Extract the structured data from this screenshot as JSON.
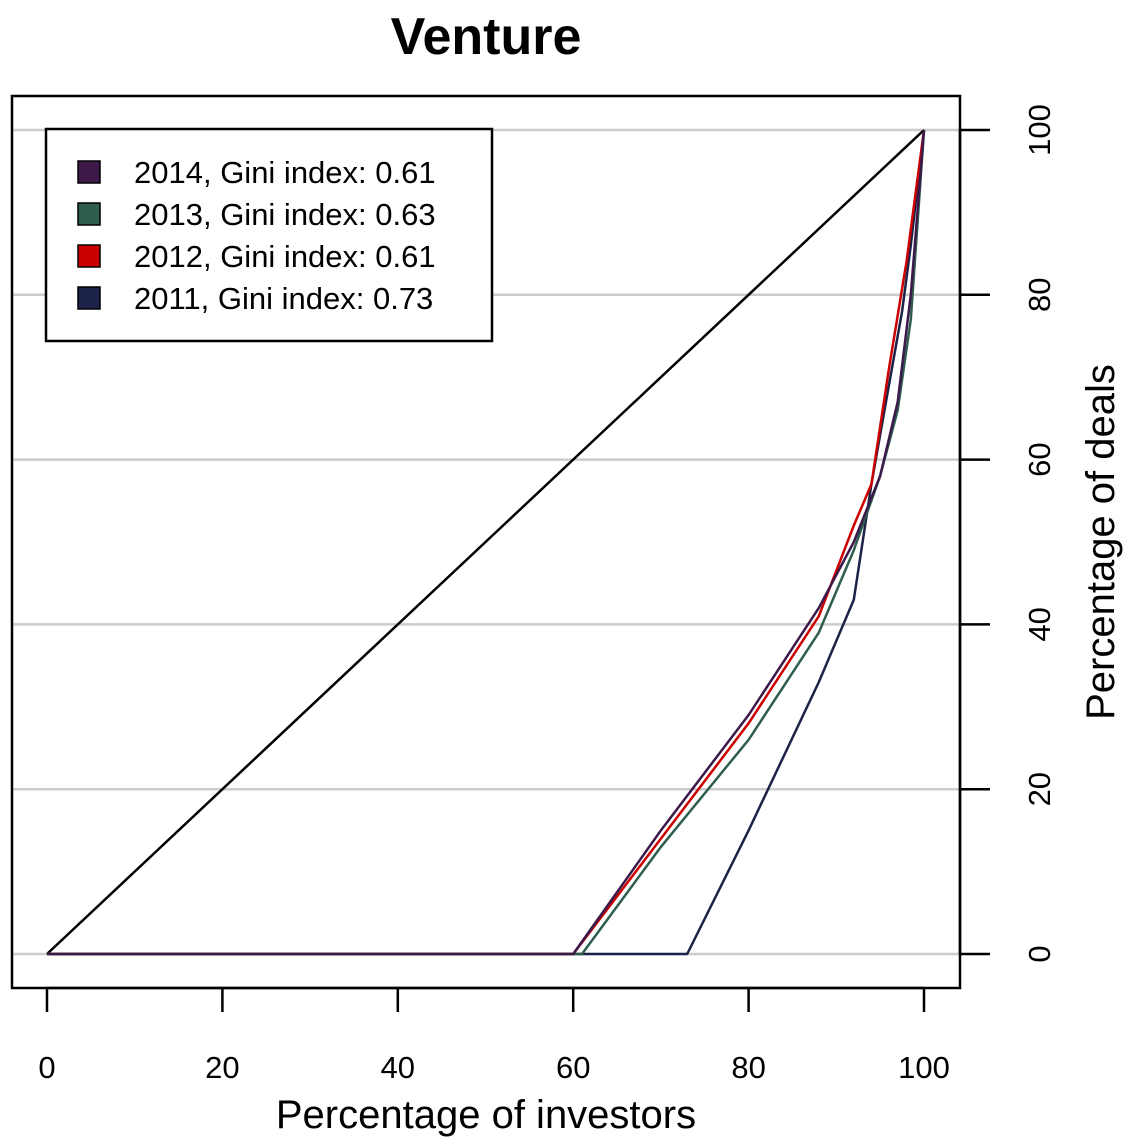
{
  "chart_data": {
    "type": "line",
    "title": "Venture",
    "xlabel": "Percentage of investors",
    "ylabel": "Percentage of deals",
    "xlim": [
      0,
      100
    ],
    "ylim": [
      0,
      100
    ],
    "xticks": [
      "0",
      "20",
      "40",
      "60",
      "80",
      "100"
    ],
    "yticks": [
      "0",
      "20",
      "40",
      "60",
      "80",
      "100"
    ],
    "y_axis_side": "right",
    "grid": "horizontal",
    "legend_position": "top-left",
    "reference_line": {
      "x": [
        0,
        100
      ],
      "y": [
        0,
        100
      ],
      "color": "#000000"
    },
    "series": [
      {
        "name": "2014, Gini index: 0.61",
        "color": "#3b1a4a",
        "x": [
          0,
          60,
          70,
          80,
          88,
          92,
          95,
          97,
          98.5,
          100
        ],
        "y": [
          0,
          0,
          15,
          29,
          42,
          50,
          58,
          67,
          80,
          100
        ]
      },
      {
        "name": "2013, Gini index: 0.63",
        "color": "#2e5e4e",
        "x": [
          0,
          61,
          70,
          80,
          88,
          92,
          95,
          97,
          98.5,
          100
        ],
        "y": [
          0,
          0,
          13,
          26,
          39,
          49,
          58,
          66,
          77,
          100
        ]
      },
      {
        "name": "2012, Gini index: 0.61",
        "color": "#cc0000",
        "x": [
          0,
          60,
          70,
          80,
          88,
          92,
          94,
          96,
          98,
          100
        ],
        "y": [
          0,
          0,
          14,
          28,
          41,
          52,
          57,
          71,
          84,
          100
        ]
      },
      {
        "name": "2011, Gini index: 0.73",
        "color": "#1c2248",
        "x": [
          0,
          73,
          80,
          88,
          92,
          94,
          96,
          97.5,
          98.5,
          100
        ],
        "y": [
          0,
          0,
          15,
          33,
          43,
          57,
          69,
          78,
          86,
          100
        ]
      }
    ]
  }
}
